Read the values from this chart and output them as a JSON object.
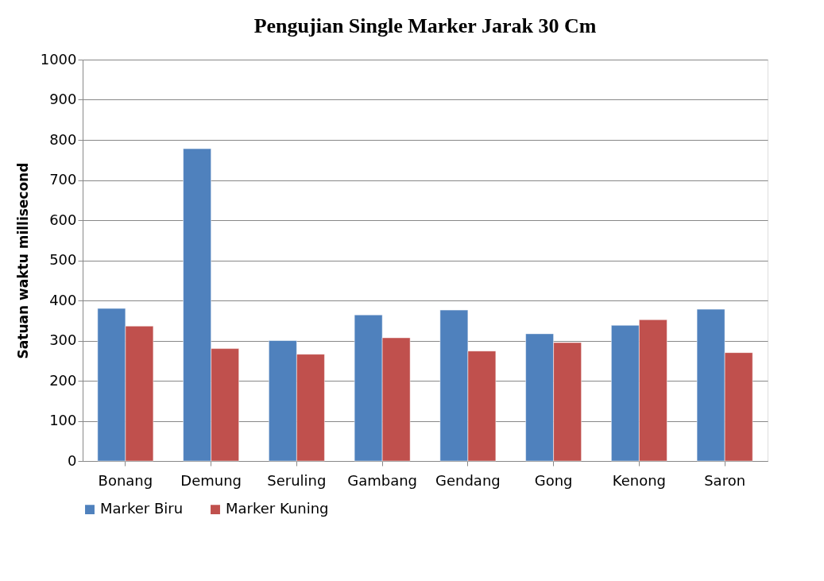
{
  "chart_data": {
    "type": "bar",
    "title": "Pengujian Single Marker Jarak 30 Cm",
    "ylabel": "Satuan waktu millisecond",
    "categories": [
      "Bonang",
      "Demung",
      "Seruling",
      "Gambang",
      "Gendang",
      "Gong",
      "Kenong",
      "Saron"
    ],
    "series": [
      {
        "name": "Marker Biru",
        "color": "#4f81bd",
        "values": [
          380,
          778,
          300,
          364,
          376,
          317,
          338,
          378
        ]
      },
      {
        "name": "Marker Kuning",
        "color": "#c0504d",
        "values": [
          336,
          280,
          266,
          307,
          274,
          295,
          352,
          270
        ]
      }
    ],
    "ylim": [
      0,
      1000
    ],
    "yticks": [
      0,
      100,
      200,
      300,
      400,
      500,
      600,
      700,
      800,
      900,
      1000
    ],
    "grid": "y",
    "legend": "bottom"
  }
}
